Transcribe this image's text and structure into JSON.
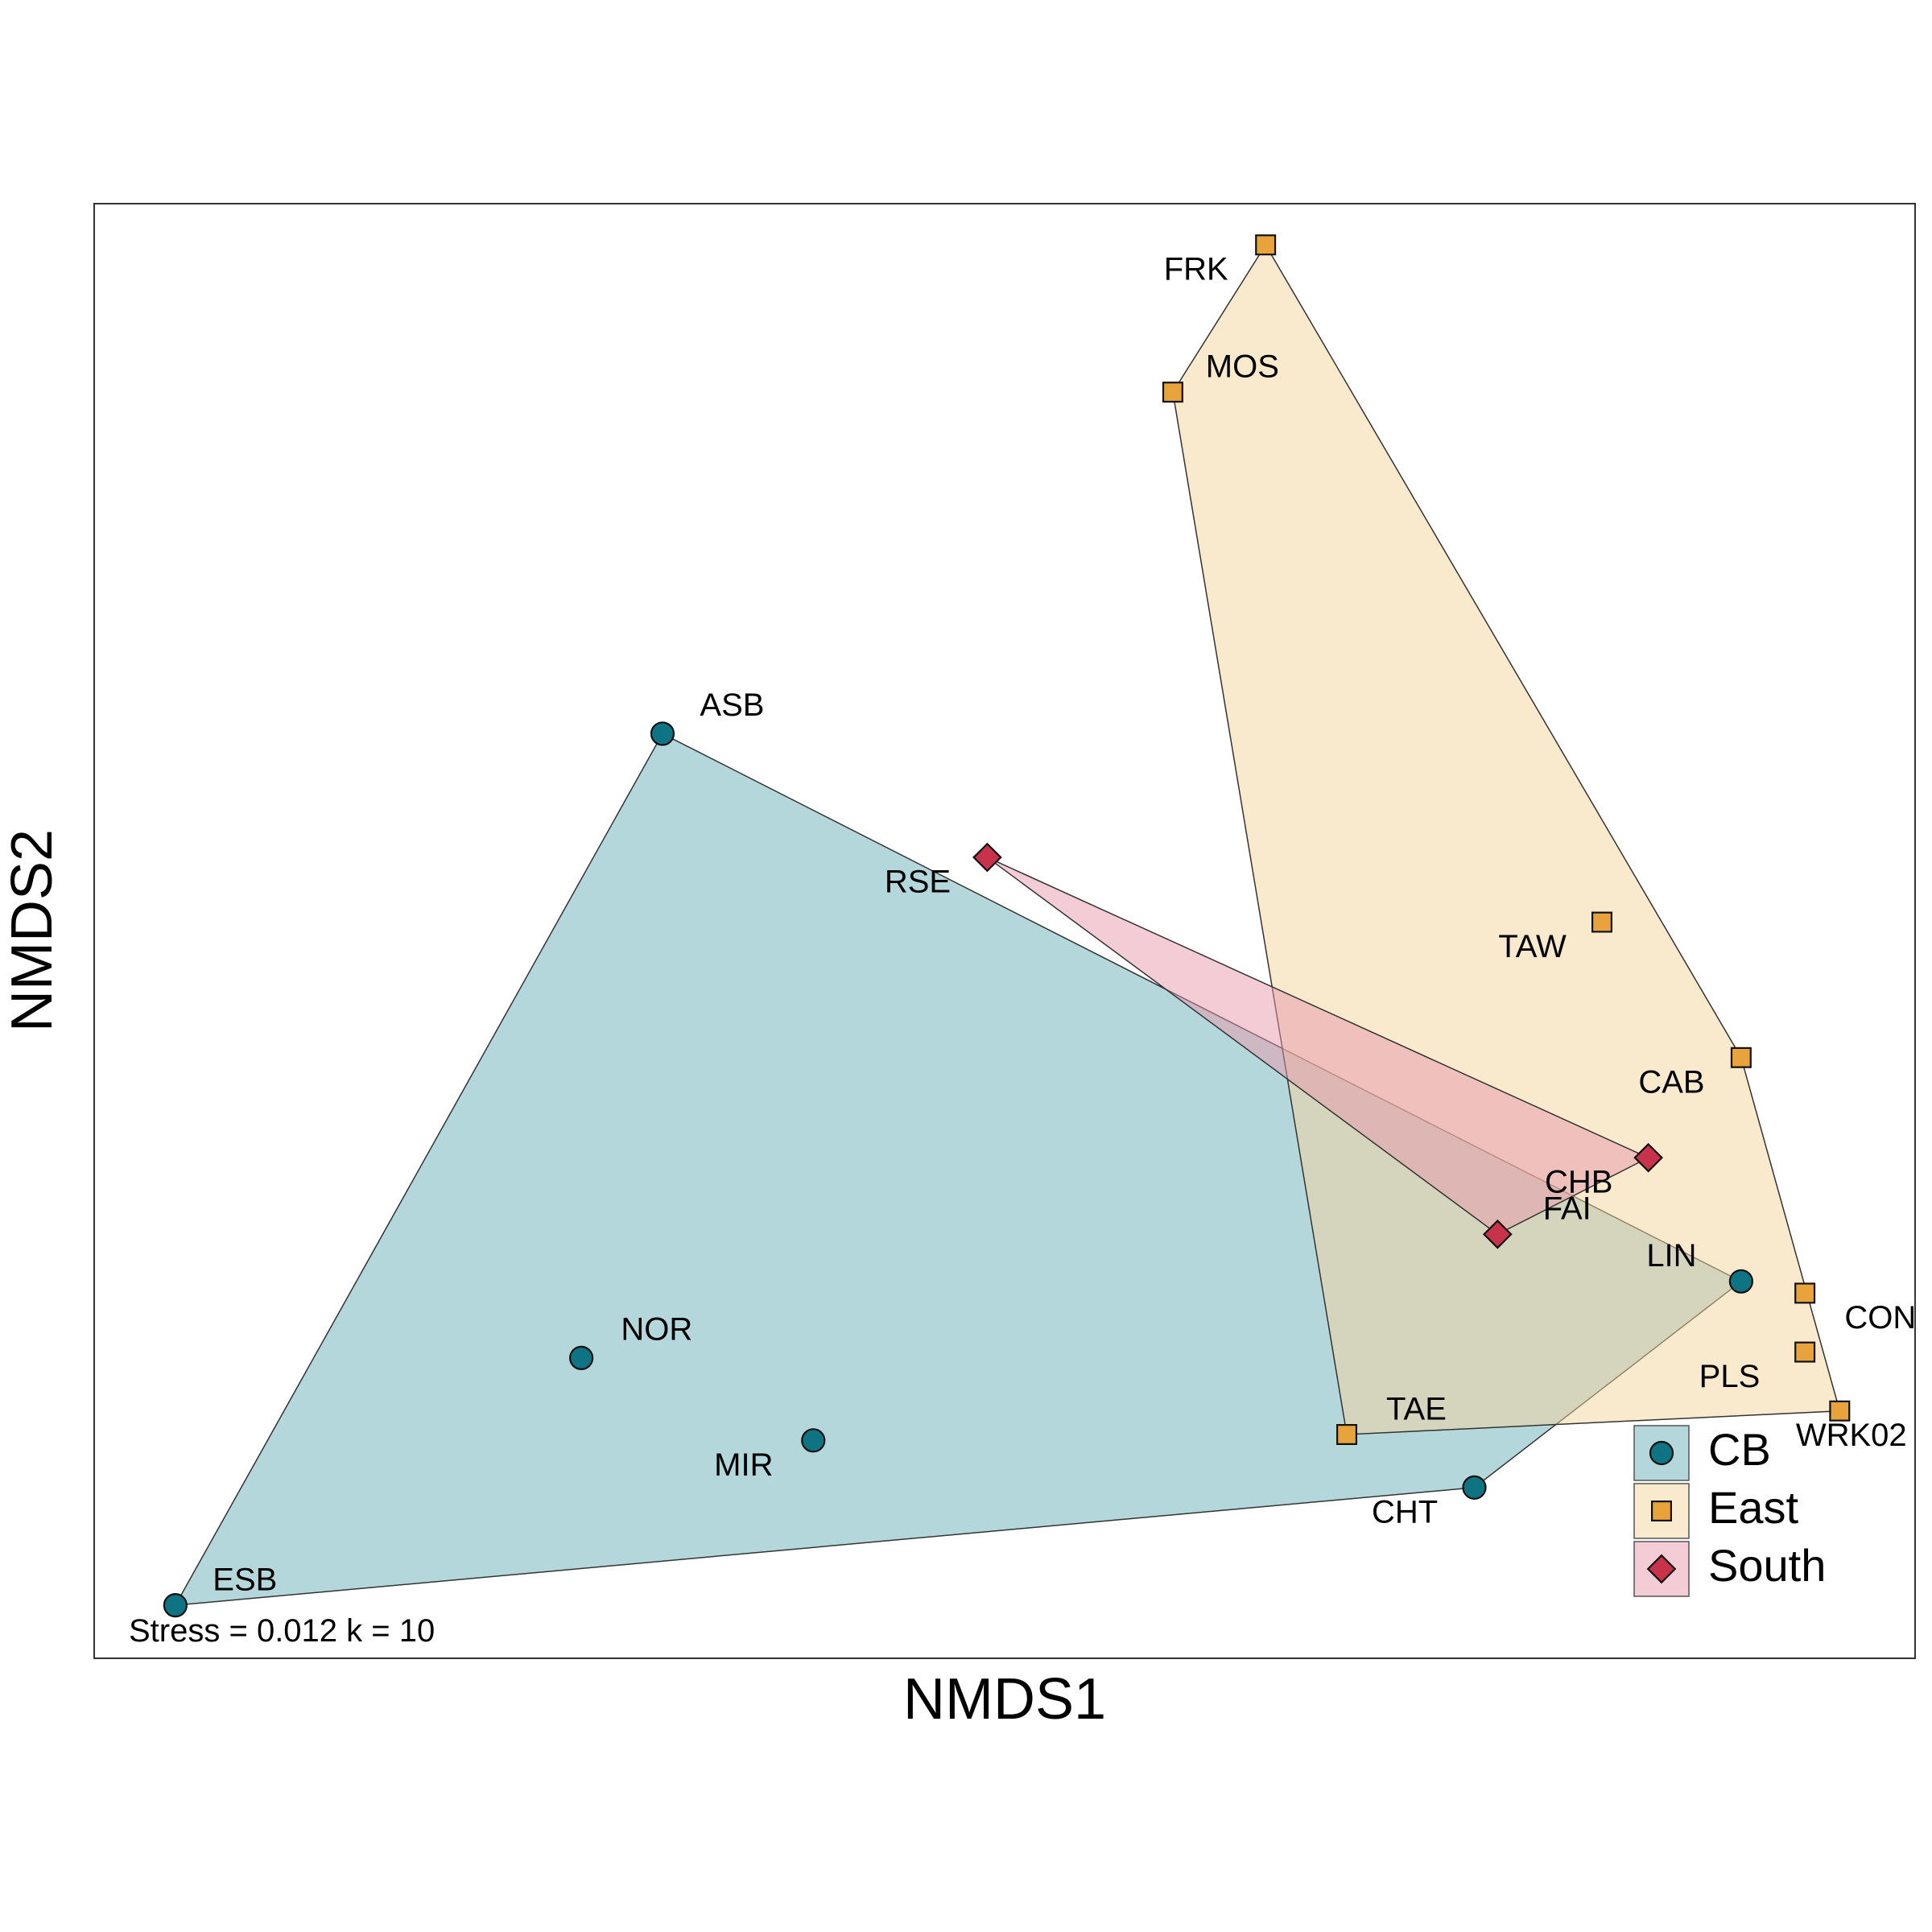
{
  "chart_data": {
    "type": "scatter",
    "xlabel": "NMDS1",
    "ylabel": "NMDS2",
    "annotation": "Stress = 0.012 k = 10",
    "legend": {
      "placement": "bottom-right"
    },
    "groups": [
      {
        "name": "CB",
        "marker": "circle",
        "color": "#0E7483",
        "fill": "#6AAFBA",
        "hull": [
          "ASB",
          "LIN",
          "CHT",
          "ESB"
        ],
        "points": [
          {
            "label": "ASB",
            "x": -0.4,
            "y": 0.48,
            "lx": 0.06,
            "ly": 0.045
          },
          {
            "label": "NOR",
            "x": -0.47,
            "y": -0.58,
            "lx": 0.065,
            "ly": 0.045
          },
          {
            "label": "MIR",
            "x": -0.27,
            "y": -0.72,
            "lx": -0.06,
            "ly": -0.045
          },
          {
            "label": "ESB",
            "x": -0.82,
            "y": -1.0,
            "lx": 0.06,
            "ly": 0.04
          },
          {
            "label": "CHT",
            "x": 0.3,
            "y": -0.8,
            "lx": -0.06,
            "ly": -0.045
          },
          {
            "label": "LIN",
            "x": 0.53,
            "y": -0.45,
            "lx": -0.06,
            "ly": 0.04
          }
        ]
      },
      {
        "name": "East",
        "marker": "square",
        "color": "#E8A33D",
        "fill": "#F4D39C",
        "hull": [
          "FRK",
          "CAB",
          "WRK02",
          "TAE",
          "MOS"
        ],
        "points": [
          {
            "label": "FRK",
            "x": 0.12,
            "y": 1.31,
            "lx": -0.06,
            "ly": -0.045
          },
          {
            "label": "MOS",
            "x": 0.04,
            "y": 1.06,
            "lx": 0.06,
            "ly": 0.04
          },
          {
            "label": "TAW",
            "x": 0.41,
            "y": 0.16,
            "lx": -0.06,
            "ly": -0.045
          },
          {
            "label": "CAB",
            "x": 0.53,
            "y": -0.07,
            "lx": -0.06,
            "ly": -0.045
          },
          {
            "label": "CON",
            "x": 0.585,
            "y": -0.47,
            "lx": 0.065,
            "ly": -0.045
          },
          {
            "label": "PLS",
            "x": 0.585,
            "y": -0.57,
            "lx": -0.065,
            "ly": -0.045
          },
          {
            "label": "WRK02",
            "x": 0.615,
            "y": -0.67,
            "lx": 0.01,
            "ly": -0.045
          },
          {
            "label": "TAE",
            "x": 0.19,
            "y": -0.71,
            "lx": 0.06,
            "ly": 0.04
          }
        ]
      },
      {
        "name": "South",
        "marker": "diamond",
        "color": "#C8324B",
        "fill": "#E89AAC",
        "hull": [
          "RSE",
          "CHB",
          "FAI"
        ],
        "points": [
          {
            "label": "RSE",
            "x": -0.12,
            "y": 0.27,
            "lx": -0.06,
            "ly": -0.045
          },
          {
            "label": "CHB",
            "x": 0.45,
            "y": -0.24,
            "lx": -0.06,
            "ly": -0.045
          },
          {
            "label": "FAI",
            "x": 0.32,
            "y": -0.37,
            "lx": 0.06,
            "ly": 0.04
          }
        ]
      }
    ],
    "axes": {
      "xlim": [
        -0.89,
        0.68
      ],
      "ylim": [
        -1.09,
        1.38
      ],
      "ticks_shown": false,
      "grid": false
    }
  }
}
